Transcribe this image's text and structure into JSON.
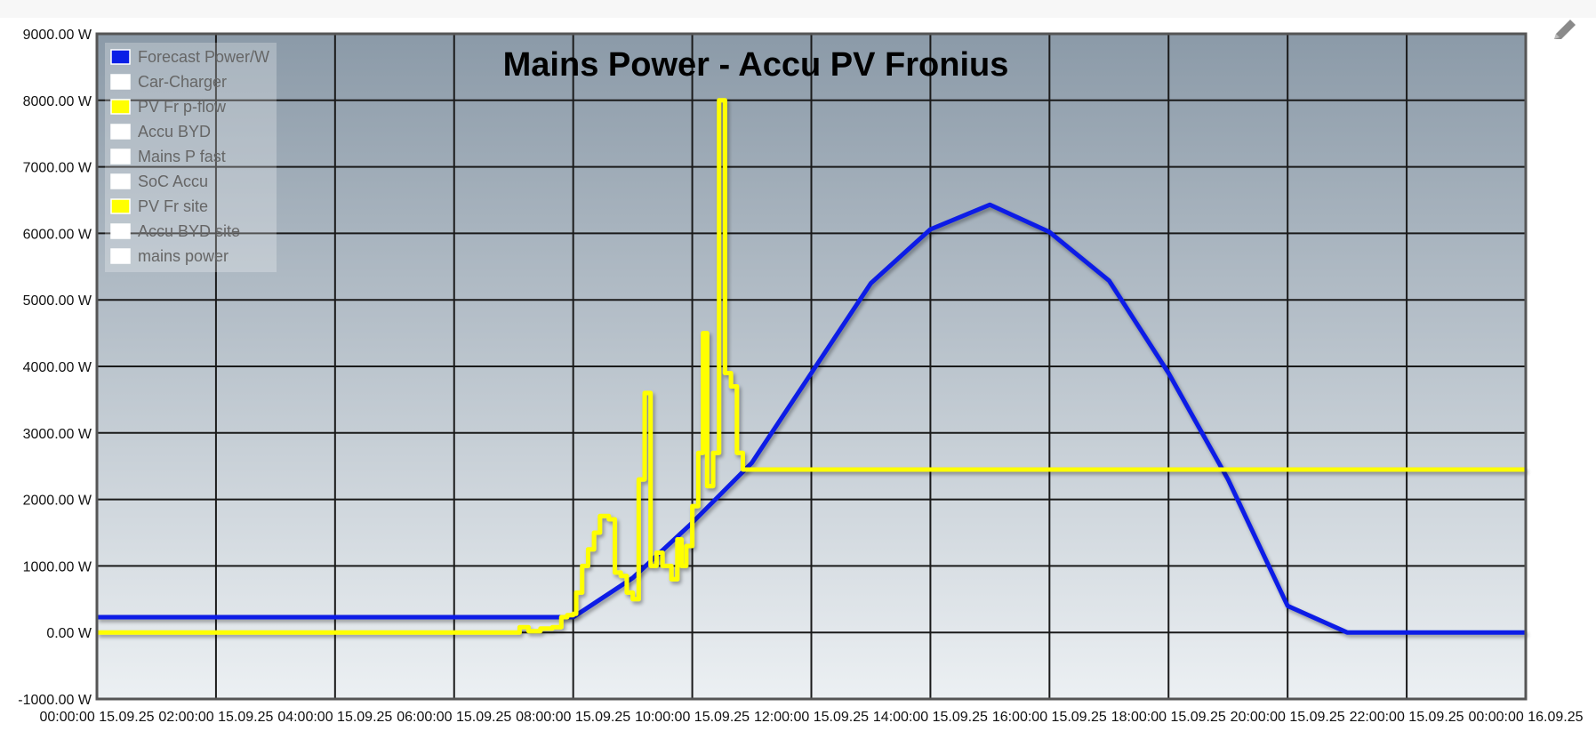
{
  "toolbar": {
    "edit_icon": "pencil-icon"
  },
  "chart_data": {
    "type": "line",
    "title": "Mains Power - Accu PV Fronius",
    "x_tick_labels": [
      "00:00:00 15.09.25",
      "02:00:00 15.09.25",
      "04:00:00 15.09.25",
      "06:00:00 15.09.25",
      "08:00:00 15.09.25",
      "10:00:00 15.09.25",
      "12:00:00 15.09.25",
      "14:00:00 15.09.25",
      "16:00:00 15.09.25",
      "18:00:00 15.09.25",
      "20:00:00 15.09.25",
      "22:00:00 15.09.25",
      "00:00:00 16.09.25"
    ],
    "x_range_hours": [
      0,
      24
    ],
    "ylim": [
      -1000,
      9000
    ],
    "y_tick_labels": [
      "9000.00 W",
      "8000.00 W",
      "7000.00 W",
      "6000.00 W",
      "5000.00 W",
      "4000.00 W",
      "3000.00 W",
      "2000.00 W",
      "1000.00 W",
      "0.00 W",
      "-1000.00 W"
    ],
    "y_tick_values": [
      9000,
      8000,
      7000,
      6000,
      5000,
      4000,
      3000,
      2000,
      1000,
      0,
      -1000
    ],
    "grid": true,
    "legend_position": "top-left",
    "legend": [
      {
        "name": "Forecast Power/W",
        "color": "#0a1ee6"
      },
      {
        "name": "Car-Charger",
        "color": "#ffffff"
      },
      {
        "name": "PV Fr p-flow",
        "color": "#ffff00"
      },
      {
        "name": "Accu BYD",
        "color": "#ffffff"
      },
      {
        "name": "Mains P fast",
        "color": "#ffffff"
      },
      {
        "name": "SoC Accu",
        "color": "#ffffff"
      },
      {
        "name": "PV Fr site",
        "color": "#ffff00"
      },
      {
        "name": "Accu BYD site",
        "color": "#ffffff"
      },
      {
        "name": "mains power",
        "color": "#ffffff"
      }
    ],
    "series": [
      {
        "name": "Forecast Power/W",
        "color": "#0a1ee6",
        "step": false,
        "points": [
          [
            0,
            230
          ],
          [
            8,
            230
          ],
          [
            9,
            820
          ],
          [
            10,
            1650
          ],
          [
            11,
            2550
          ],
          [
            12,
            3900
          ],
          [
            13,
            5250
          ],
          [
            14,
            6060
          ],
          [
            15,
            6430
          ],
          [
            16,
            6020
          ],
          [
            17,
            5290
          ],
          [
            18,
            3900
          ],
          [
            19,
            2300
          ],
          [
            20,
            400
          ],
          [
            21,
            0
          ],
          [
            24,
            0
          ]
        ]
      },
      {
        "name": "PV Fr site",
        "color": "#ffff00",
        "step": true,
        "points": [
          [
            0,
            0
          ],
          [
            7,
            0
          ],
          [
            7.1,
            80
          ],
          [
            7.25,
            20
          ],
          [
            7.45,
            60
          ],
          [
            7.65,
            80
          ],
          [
            7.8,
            230
          ],
          [
            7.9,
            260
          ],
          [
            8.0,
            280
          ],
          [
            8.05,
            600
          ],
          [
            8.15,
            1000
          ],
          [
            8.25,
            1250
          ],
          [
            8.35,
            1500
          ],
          [
            8.45,
            1750
          ],
          [
            8.6,
            1700
          ],
          [
            8.7,
            900
          ],
          [
            8.8,
            850
          ],
          [
            8.9,
            600
          ],
          [
            9.0,
            500
          ],
          [
            9.1,
            2300
          ],
          [
            9.2,
            3600
          ],
          [
            9.3,
            1000
          ],
          [
            9.4,
            1200
          ],
          [
            9.5,
            1000
          ],
          [
            9.65,
            800
          ],
          [
            9.75,
            1400
          ],
          [
            9.82,
            1000
          ],
          [
            9.9,
            1300
          ],
          [
            10.0,
            1900
          ],
          [
            10.1,
            2700
          ],
          [
            10.18,
            4500
          ],
          [
            10.25,
            2200
          ],
          [
            10.35,
            2700
          ],
          [
            10.45,
            8000
          ],
          [
            10.55,
            3900
          ],
          [
            10.65,
            3700
          ],
          [
            10.75,
            2700
          ],
          [
            10.85,
            2450
          ],
          [
            24,
            2450
          ]
        ]
      }
    ]
  }
}
